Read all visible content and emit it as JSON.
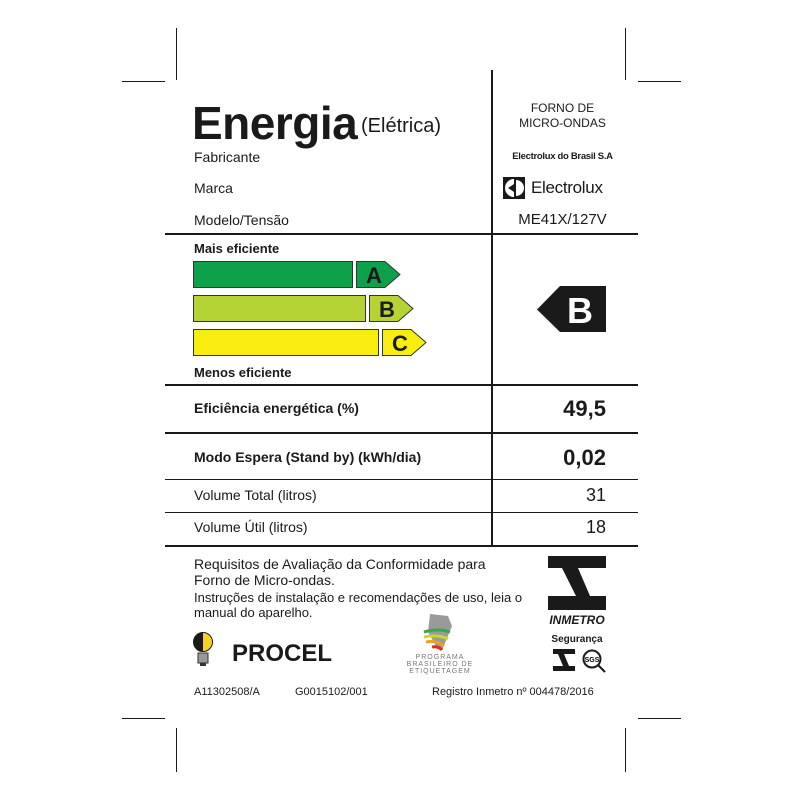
{
  "header": {
    "title": "Energia",
    "subtitle": "(Elétrica)",
    "product_type_line1": "FORNO DE",
    "product_type_line2": "MICRO-ONDAS"
  },
  "fields": [
    {
      "label": "Fabricante",
      "value": "Electrolux do Brasil S.A"
    },
    {
      "label": "Marca",
      "value": "Electrolux"
    },
    {
      "label": "Modelo/Tensão",
      "value": "ME41X/127V"
    }
  ],
  "scale": {
    "top_label": "Mais eficiente",
    "bottom_label": "Menos eficiente",
    "classes": [
      {
        "letter": "A",
        "color": "#0fa04b"
      },
      {
        "letter": "B",
        "color": "#b6d335"
      },
      {
        "letter": "C",
        "color": "#f7ee0f"
      }
    ],
    "rating": "B"
  },
  "specs": [
    {
      "label": "Eficiência energética (%)",
      "value": "49,5",
      "bold": true
    },
    {
      "label": "Modo Espera (Stand by) (kWh/dia)",
      "value": "0,02",
      "bold": true
    },
    {
      "label": "Volume Total (litros)",
      "value": "31",
      "bold": false
    },
    {
      "label": "Volume Útil (litros)",
      "value": "18",
      "bold": false
    }
  ],
  "footer": {
    "req_line1": "Requisitos de Avaliação da Conformidade para",
    "req_line2": "Forno de Micro-ondas.",
    "instr_line1": "Instruções de instalação e recomendações de uso, leia o",
    "instr_line2": "manual do aparelho.",
    "procel": "PROCEL",
    "pbe_line1": "PROGRAMA",
    "pbe_line2": "BRASILEIRO DE",
    "pbe_line3": "ETIQUETAGEM",
    "inmetro": "INMETRO",
    "seguranca": "Segurança",
    "sgs": "SGS",
    "code1": "A11302508/A",
    "code2": "G0015102/001",
    "registro": "Registro Inmetro nº 004478/2016"
  }
}
